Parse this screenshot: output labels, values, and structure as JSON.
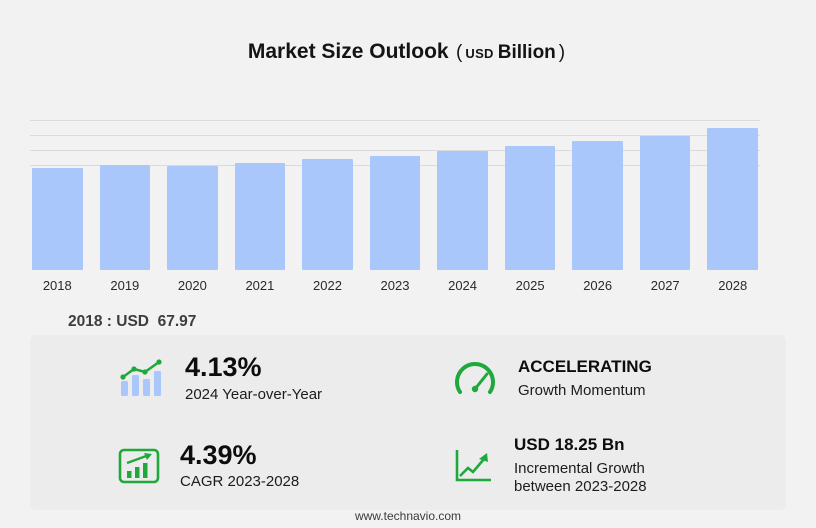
{
  "title": {
    "main": "Market Size Outlook",
    "open_paren": "(",
    "usd": "USD",
    "unit": "Billion",
    "close_paren": ")"
  },
  "chart_data": {
    "type": "bar",
    "title": "Market Size Outlook (USD Billion)",
    "categories": [
      "2018",
      "2019",
      "2020",
      "2021",
      "2022",
      "2023",
      "2024",
      "2025",
      "2026",
      "2027",
      "2028"
    ],
    "values": [
      67.97,
      69.7,
      69.4,
      71.6,
      73.7,
      76.14,
      79.28,
      82.55,
      85.95,
      89.5,
      94.39
    ],
    "xlabel": "",
    "ylabel": "",
    "ylim": [
      0,
      100
    ],
    "gridlines": [
      70,
      80,
      90,
      100
    ],
    "grid": "horizontal-top-only",
    "legend": "none",
    "bar_color": "#a9c7fb",
    "annotation": "2018 : USD  67.97"
  },
  "annotation": "2018 : USD  67.97",
  "stats": {
    "yoy": {
      "value": "4.13%",
      "label": "2024 Year-over-Year",
      "icon": "growth-bars-icon"
    },
    "momentum": {
      "value": "ACCELERATING",
      "label": "Growth Momentum",
      "icon": "speedometer-icon"
    },
    "cagr": {
      "value": "4.39%",
      "label": "CAGR 2023-2028",
      "icon": "cagr-chart-icon"
    },
    "incremental": {
      "value": "USD 18.25 Bn",
      "label_line1": "Incremental Growth",
      "label_line2": "between 2023-2028",
      "icon": "incremental-growth-icon"
    }
  },
  "footer": "www.technavio.com",
  "colors": {
    "bar": "#a9c7fb",
    "accent_green": "#1fa83c",
    "background": "#f2f2f2",
    "panel": "#ececec"
  }
}
